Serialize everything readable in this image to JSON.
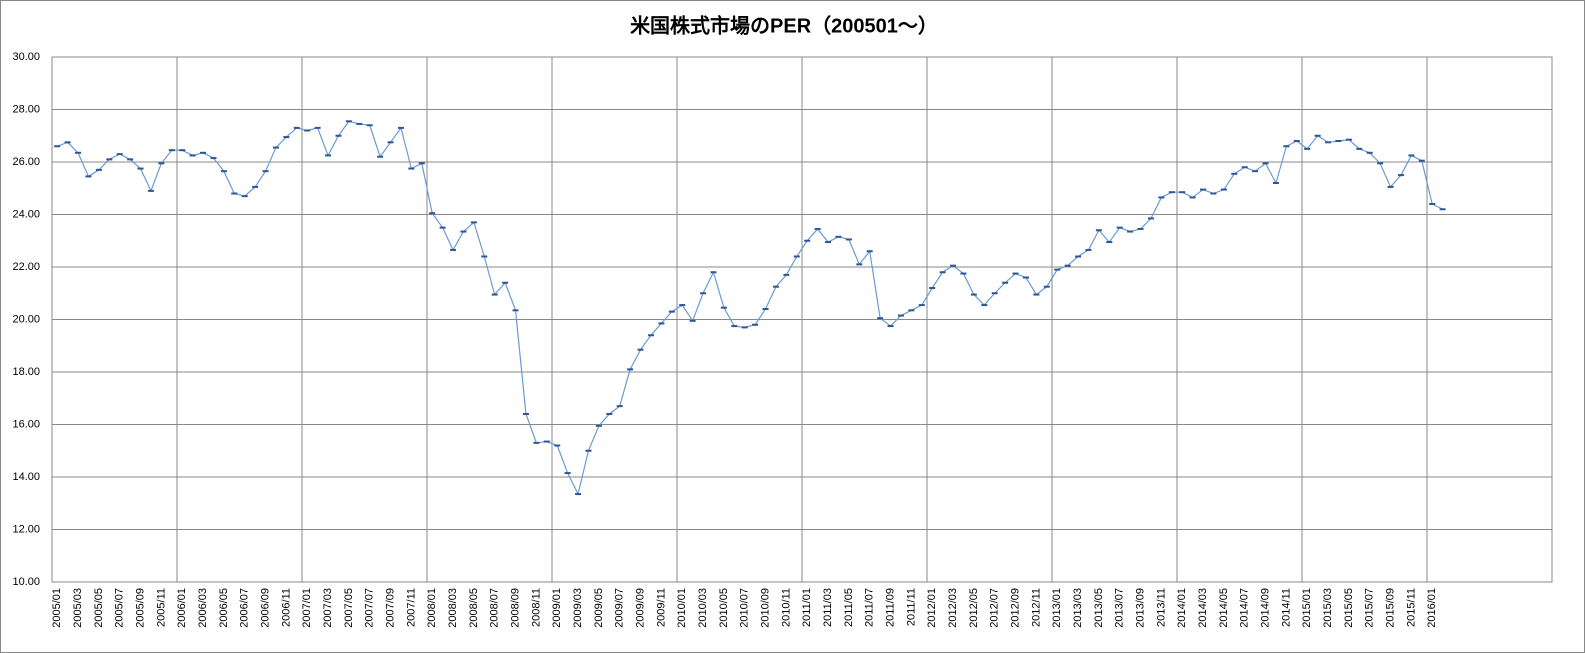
{
  "chart_data": {
    "type": "line",
    "title": "米国株式市場のPER（200501～）",
    "categories": [
      "2005/01",
      null,
      "2005/03",
      null,
      "2005/05",
      null,
      "2005/07",
      null,
      "2005/09",
      null,
      "2005/11",
      null,
      "2006/01",
      null,
      "2006/03",
      null,
      "2006/05",
      null,
      "2006/07",
      null,
      "2006/09",
      null,
      "2006/11",
      null,
      "2007/01",
      null,
      "2007/03",
      null,
      "2007/05",
      null,
      "2007/07",
      null,
      "2007/09",
      null,
      "2007/11",
      null,
      "2008/01",
      null,
      "2008/03",
      null,
      "2008/05",
      null,
      "2008/07",
      null,
      "2008/09",
      null,
      "2008/11",
      null,
      "2009/01",
      null,
      "2009/03",
      null,
      "2009/05",
      null,
      "2009/07",
      null,
      "2009/09",
      null,
      "2009/11",
      null,
      "2010/01",
      null,
      "2010/03",
      null,
      "2010/05",
      null,
      "2010/07",
      null,
      "2010/09",
      null,
      "2010/11",
      null,
      "2011/01",
      null,
      "2011/03",
      null,
      "2011/05",
      null,
      "2011/07",
      null,
      "2011/09",
      null,
      "2011/11",
      null,
      "2012/01",
      null,
      "2012/03",
      null,
      "2012/05",
      null,
      "2012/07",
      null,
      "2012/09",
      null,
      "2012/11",
      null,
      "2013/01",
      null,
      "2013/03",
      null,
      "2013/05",
      null,
      "2013/07",
      null,
      "2013/09",
      null,
      "2013/11",
      null,
      "2014/01",
      null,
      "2014/03",
      null,
      "2014/05",
      null,
      "2014/07",
      null,
      "2014/09",
      null,
      "2014/11",
      null,
      "2015/01",
      null,
      "2015/03",
      null,
      "2015/05",
      null,
      "2015/07",
      null,
      "2015/09",
      null,
      "2015/11",
      null,
      "2016/01",
      null,
      null,
      null,
      null,
      null,
      null,
      null,
      null,
      null,
      null,
      null
    ],
    "values": [
      26.6,
      26.75,
      26.35,
      25.45,
      25.7,
      26.1,
      26.3,
      26.1,
      25.75,
      24.9,
      25.95,
      26.45,
      26.45,
      26.25,
      26.35,
      26.15,
      25.65,
      24.8,
      24.7,
      25.05,
      25.65,
      26.55,
      26.95,
      27.3,
      27.2,
      27.3,
      26.25,
      27.0,
      27.55,
      27.45,
      27.4,
      26.2,
      26.75,
      27.3,
      25.75,
      25.95,
      24.05,
      23.5,
      22.65,
      23.35,
      23.7,
      22.4,
      20.95,
      21.4,
      20.35,
      16.4,
      15.3,
      15.35,
      15.2,
      14.15,
      13.35,
      15.0,
      15.95,
      16.4,
      16.7,
      18.1,
      18.85,
      19.4,
      19.85,
      20.3,
      20.55,
      19.95,
      21.0,
      21.8,
      20.45,
      19.75,
      19.7,
      19.8,
      20.4,
      21.25,
      21.7,
      22.4,
      23.0,
      23.45,
      22.95,
      23.15,
      23.05,
      22.1,
      22.6,
      20.05,
      19.75,
      20.15,
      20.35,
      20.55,
      21.2,
      21.8,
      22.05,
      21.75,
      20.95,
      20.55,
      21.0,
      21.4,
      21.75,
      21.6,
      20.95,
      21.25,
      21.9,
      22.05,
      22.4,
      22.65,
      23.4,
      22.95,
      23.5,
      23.35,
      23.45,
      23.85,
      24.65,
      24.85,
      24.85,
      24.65,
      24.95,
      24.8,
      24.95,
      25.55,
      25.8,
      25.65,
      25.95,
      25.2,
      26.6,
      26.8,
      26.5,
      27.0,
      26.75,
      26.8,
      26.85,
      26.5,
      26.35,
      25.95,
      25.05,
      25.5,
      26.25,
      26.05,
      24.4,
      24.2,
      null,
      null,
      null,
      null,
      null,
      null,
      null,
      null,
      null,
      null
    ],
    "color": "#6a9bd1",
    "marker_color": "#2f5597",
    "ylim": [
      10,
      30
    ],
    "yticks": [
      {
        "value": 10,
        "label": "10.00"
      },
      {
        "value": 12,
        "label": "12.00"
      },
      {
        "value": 14,
        "label": "14.00"
      },
      {
        "value": 16,
        "label": "16.00"
      },
      {
        "value": 18,
        "label": "18.00"
      },
      {
        "value": 20,
        "label": "20.00"
      },
      {
        "value": 22,
        "label": "22.00"
      },
      {
        "value": 24,
        "label": "24.00"
      },
      {
        "value": 26,
        "label": "26.00"
      },
      {
        "value": 28,
        "label": "28.00"
      },
      {
        "value": 30,
        "label": "30.00"
      }
    ],
    "grid": true
  }
}
